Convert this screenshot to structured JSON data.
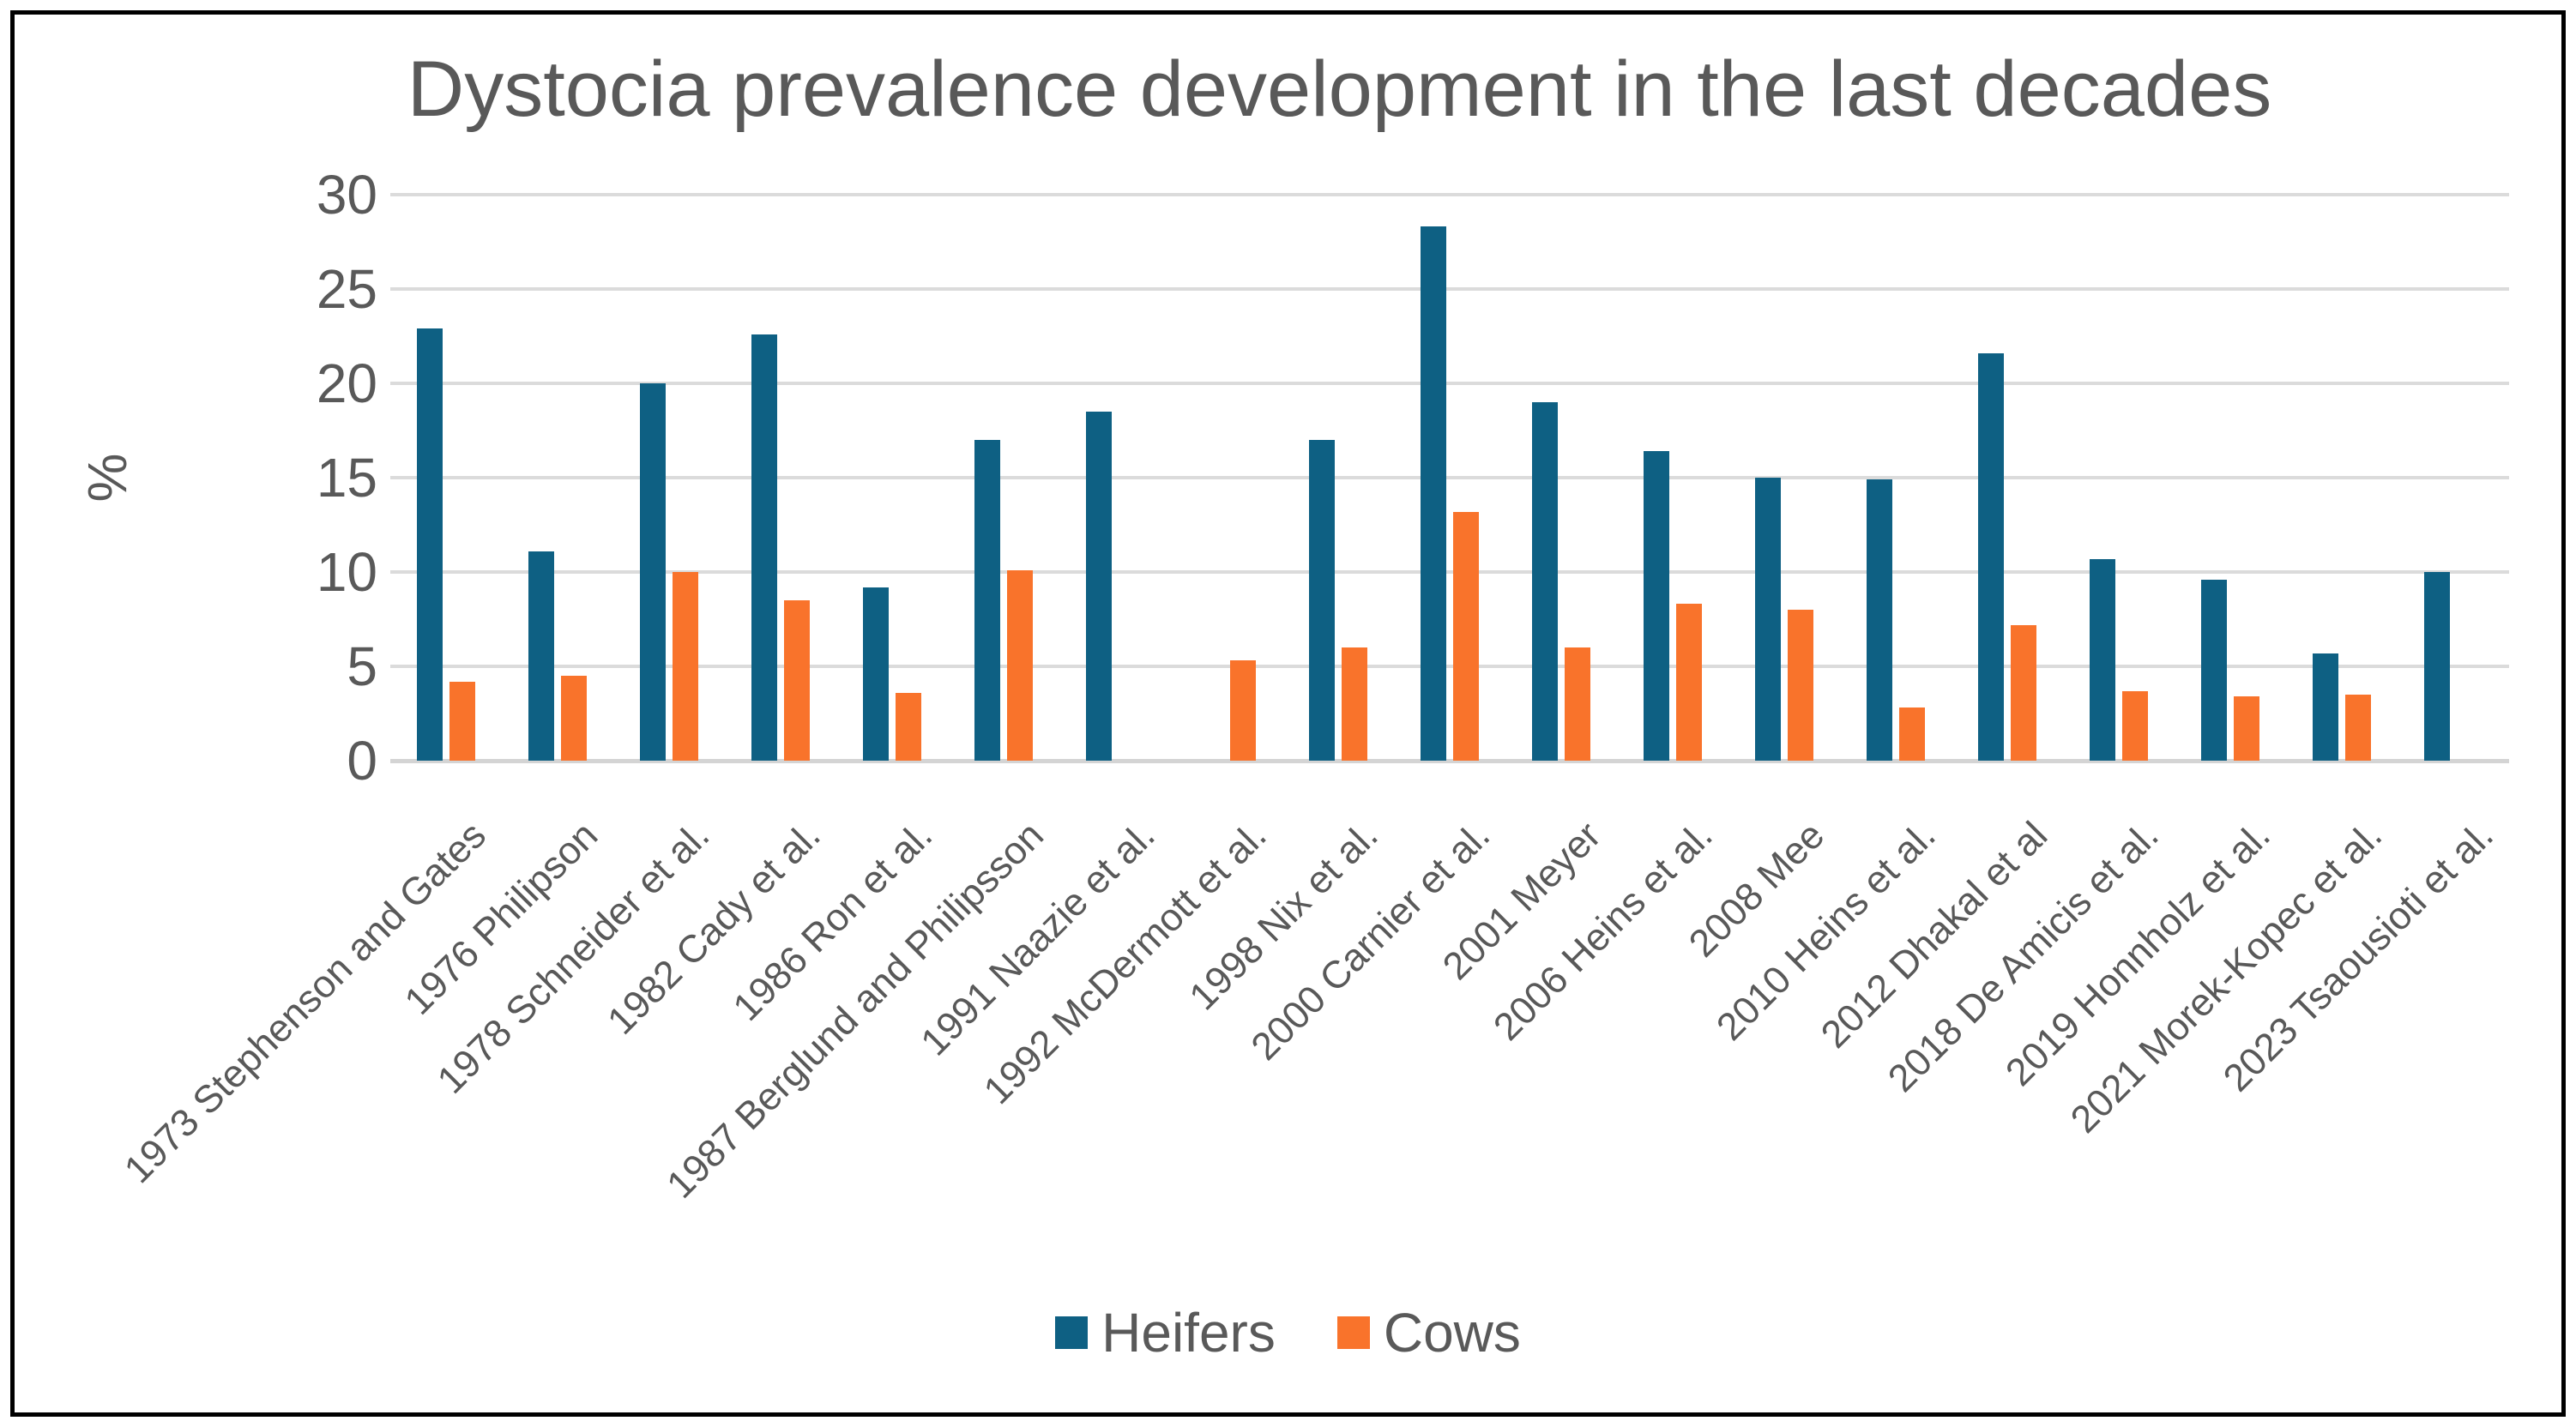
{
  "chart_data": {
    "type": "bar",
    "title": "Dystocia prevalence development in the last decades",
    "xlabel": "",
    "ylabel": "%",
    "ylim": [
      0,
      30
    ],
    "yticks": [
      0,
      5,
      10,
      15,
      20,
      25,
      30
    ],
    "grid": true,
    "legend_position": "bottom",
    "categories": [
      "1973 Stephenson and Gates",
      "1976 Philipson",
      "1978 Schneider et al.",
      "1982 Cady et al.",
      "1986 Ron et al.",
      "1987 Berglund and Philipsson",
      "1991 Naazie et al.",
      "1992 McDermott et al.",
      "1998 Nix et al.",
      "2000 Carnier et al.",
      "2001 Meyer",
      "2006 Heins et al.",
      "2008 Mee",
      "2010 Heins et al.",
      "2012 Dhakal et al",
      "2018 De Amicis et al.",
      "2019 Honnholz et al.",
      "2021 Morek-Kopec et al.",
      "2023 Tsaousioti et al."
    ],
    "series": [
      {
        "name": "Heifers",
        "color": "#0E6083",
        "values": [
          22.9,
          11.1,
          20.0,
          22.6,
          9.2,
          17.0,
          18.5,
          null,
          17.0,
          28.3,
          19.0,
          16.4,
          15.0,
          14.9,
          21.6,
          10.7,
          9.6,
          5.7,
          10.0
        ]
      },
      {
        "name": "Cows",
        "color": "#F9732B",
        "values": [
          4.2,
          4.5,
          10.0,
          8.5,
          3.6,
          10.1,
          null,
          5.3,
          6.0,
          13.2,
          6.0,
          8.3,
          8.0,
          2.8,
          7.2,
          3.7,
          3.4,
          3.5,
          null
        ]
      }
    ]
  },
  "colors": {
    "text": "#595959",
    "gridline": "#DBDBDB",
    "axis_line": "#D4D4D4",
    "background": "#FFFFFF",
    "border": "#000000"
  }
}
